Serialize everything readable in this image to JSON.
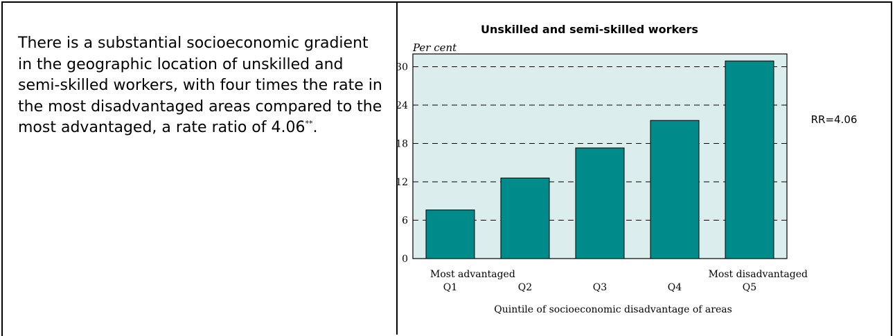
{
  "paragraph": {
    "text": "There is a substantial socioeconomic gradient in the geographic location of unskilled and semi-skilled workers, with four times the rate in the most disadvantaged areas compared to the most advantaged, a rate ratio of 4.06",
    "footnote_mark": "**",
    "end": "."
  },
  "colors": {
    "bar": "#008B8B",
    "plot_background": "#DCEDED"
  },
  "chart_data": {
    "type": "bar",
    "title": "Unskilled and semi-skilled workers",
    "ylabel": "Per cent",
    "xlabel": "Quintile of socioeconomic disadvantage of areas",
    "categories": [
      "Q1",
      "Q2",
      "Q3",
      "Q4",
      "Q5"
    ],
    "values": [
      7.6,
      12.6,
      17.3,
      21.6,
      30.9
    ],
    "ylim": [
      0,
      32
    ],
    "yticks": [
      0,
      6,
      12,
      18,
      24,
      30
    ],
    "grid": "horizontal dashed",
    "end_labels": {
      "left": "Most advantaged",
      "right": "Most disadvantaged"
    },
    "annotation": "RR=4.06"
  }
}
